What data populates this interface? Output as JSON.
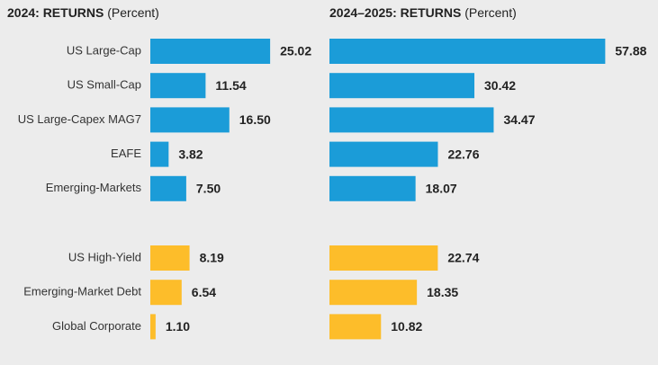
{
  "chart_data": [
    {
      "type": "barh",
      "title": "2024: RETURNS",
      "subtitle": "(Percent)",
      "categories": [
        "US Large-Cap",
        "US Small-Cap",
        "US Large-Capex MAG7",
        "EAFE",
        "Emerging-Markets",
        "US High-Yield",
        "Emerging-Market Debt",
        "Global Corporate"
      ],
      "values": [
        25.02,
        11.54,
        16.5,
        3.82,
        7.5,
        8.19,
        6.54,
        1.1
      ],
      "value_labels": [
        "25.02",
        "11.54",
        "16.50",
        "3.82",
        "7.50",
        "8.19",
        "6.54",
        "1.10"
      ],
      "colors": [
        "#1b9cd8",
        "#1b9cd8",
        "#1b9cd8",
        "#1b9cd8",
        "#1b9cd8",
        "#fdbd2a",
        "#fdbd2a",
        "#fdbd2a"
      ],
      "xlim": [
        0,
        25
      ]
    },
    {
      "type": "barh",
      "title": "2024–2025: RETURNS",
      "subtitle": "(Percent)",
      "values": [
        57.88,
        30.42,
        34.47,
        22.76,
        18.07,
        22.74,
        18.35,
        10.82
      ],
      "value_labels": [
        "57.88",
        "30.42",
        "34.47",
        "22.76",
        "18.07",
        "22.74",
        "18.35",
        "10.82"
      ],
      "colors": [
        "#1b9cd8",
        "#1b9cd8",
        "#1b9cd8",
        "#1b9cd8",
        "#1b9cd8",
        "#fdbd2a",
        "#fdbd2a",
        "#fdbd2a"
      ],
      "xlim": [
        0,
        58
      ]
    }
  ]
}
